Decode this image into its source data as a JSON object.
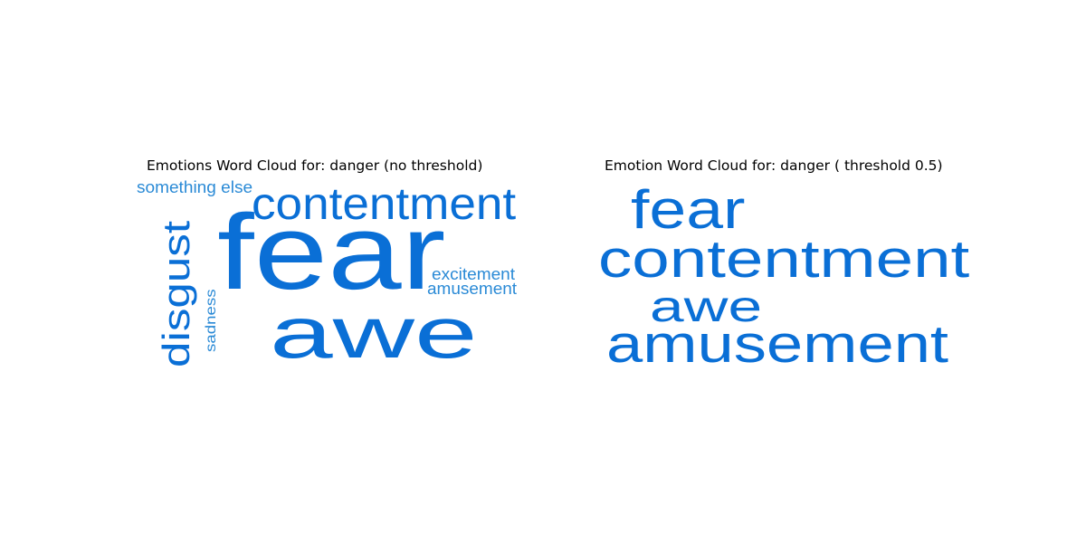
{
  "chart_data": [
    {
      "type": "wordcloud",
      "title": "Emotions Word Cloud for: danger (no threshold)",
      "words": [
        {
          "text": "fear"
        },
        {
          "text": "awe"
        },
        {
          "text": "contentment"
        },
        {
          "text": "disgust"
        },
        {
          "text": "excitement"
        },
        {
          "text": "amusement"
        },
        {
          "text": "something else"
        },
        {
          "text": "sadness"
        }
      ]
    },
    {
      "type": "wordcloud",
      "title": "Emotion Word Cloud for: danger ( threshold 0.5)",
      "words": [
        {
          "text": "contentment"
        },
        {
          "text": "amusement"
        },
        {
          "text": "fear"
        },
        {
          "text": "awe"
        }
      ]
    }
  ],
  "colors": {
    "word_primary": "#0a6fd6",
    "word_secondary": "#2a8ad6"
  }
}
